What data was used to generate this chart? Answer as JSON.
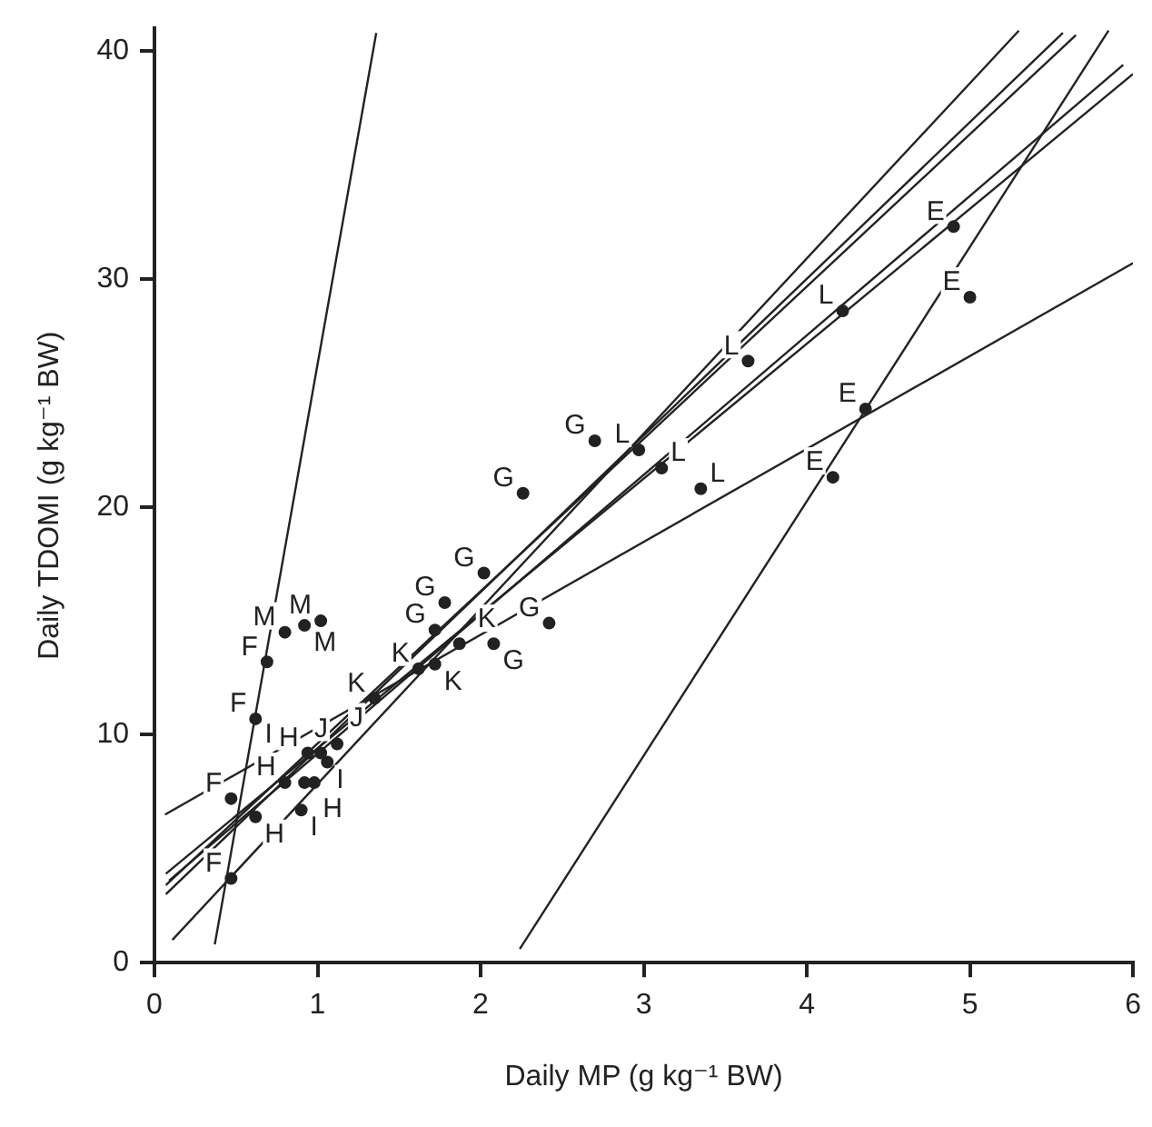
{
  "chart_data": {
    "type": "scatter",
    "xlabel": "Daily MP (g kg⁻¹ BW)",
    "ylabel": "Daily TDOMI (g kg⁻¹ BW)",
    "xlim": [
      0,
      6
    ],
    "ylim": [
      0,
      41
    ],
    "xticks": [
      0,
      1,
      2,
      3,
      4,
      5,
      6
    ],
    "yticks": [
      0,
      10,
      20,
      30,
      40
    ],
    "grid": false,
    "legend": false,
    "series": [
      {
        "name": "E",
        "color": "#222222",
        "marker": "circle",
        "x": [
          4.9,
          5.0,
          4.36,
          4.16
        ],
        "values": [
          32.3,
          29.2,
          24.3,
          21.3
        ]
      },
      {
        "name": "F",
        "color": "#222222",
        "marker": "circle",
        "x": [
          0.69,
          0.62,
          0.47,
          0.47
        ],
        "values": [
          13.2,
          10.7,
          7.2,
          3.7
        ]
      },
      {
        "name": "G",
        "color": "#222222",
        "marker": "circle",
        "x": [
          2.7,
          2.26,
          2.02,
          1.78,
          2.42,
          1.72,
          2.08
        ],
        "values": [
          22.9,
          20.6,
          17.1,
          15.8,
          14.9,
          14.6,
          14.0
        ]
      },
      {
        "name": "H",
        "color": "#222222",
        "marker": "circle",
        "x": [
          0.62,
          0.8,
          0.94,
          0.92
        ],
        "values": [
          6.4,
          7.9,
          9.2,
          7.9
        ]
      },
      {
        "name": "I",
        "color": "#222222",
        "marker": "circle",
        "x": [
          0.9,
          0.98,
          1.06
        ],
        "values": [
          6.7,
          7.9,
          8.8
        ]
      },
      {
        "name": "J",
        "color": "#222222",
        "marker": "circle",
        "x": [
          1.12,
          1.02
        ],
        "values": [
          9.6,
          9.2
        ]
      },
      {
        "name": "K",
        "color": "#222222",
        "marker": "circle",
        "x": [
          1.35,
          1.62,
          1.72,
          1.87
        ],
        "values": [
          11.6,
          12.9,
          13.1,
          14.0
        ]
      },
      {
        "name": "L",
        "color": "#222222",
        "marker": "circle",
        "x": [
          4.22,
          3.64,
          2.97,
          3.11,
          3.35
        ],
        "values": [
          28.6,
          26.4,
          22.5,
          21.7,
          20.8
        ]
      },
      {
        "name": "M",
        "color": "#222222",
        "marker": "circle",
        "x": [
          0.8,
          0.92,
          1.02
        ],
        "values": [
          14.5,
          14.8,
          15.0
        ]
      },
      {
        "type": "line",
        "color": "#222222",
        "x": [
          0.37,
          1.36
        ],
        "values": [
          0.8,
          40.8
        ]
      },
      {
        "type": "line",
        "color": "#222222",
        "x": [
          2.24,
          5.85
        ],
        "values": [
          0.6,
          40.9
        ]
      },
      {
        "type": "line",
        "color": "#222222",
        "x": [
          0.065,
          6.0
        ],
        "values": [
          6.5,
          30.7
        ]
      },
      {
        "type": "line",
        "color": "#222222",
        "x": [
          0.11,
          5.3
        ],
        "values": [
          1.0,
          40.9
        ]
      },
      {
        "type": "line",
        "color": "#222222",
        "x": [
          0.07,
          5.57
        ],
        "values": [
          3.0,
          40.8
        ]
      },
      {
        "type": "line",
        "color": "#222222",
        "x": [
          0.07,
          5.65
        ],
        "values": [
          3.4,
          40.7
        ]
      },
      {
        "type": "line",
        "color": "#222222",
        "x": [
          0.09,
          5.94
        ],
        "values": [
          3.6,
          39.4
        ]
      },
      {
        "type": "line",
        "color": "#222222",
        "x": [
          0.07,
          6.0
        ],
        "values": [
          3.9,
          39.0
        ]
      }
    ]
  }
}
